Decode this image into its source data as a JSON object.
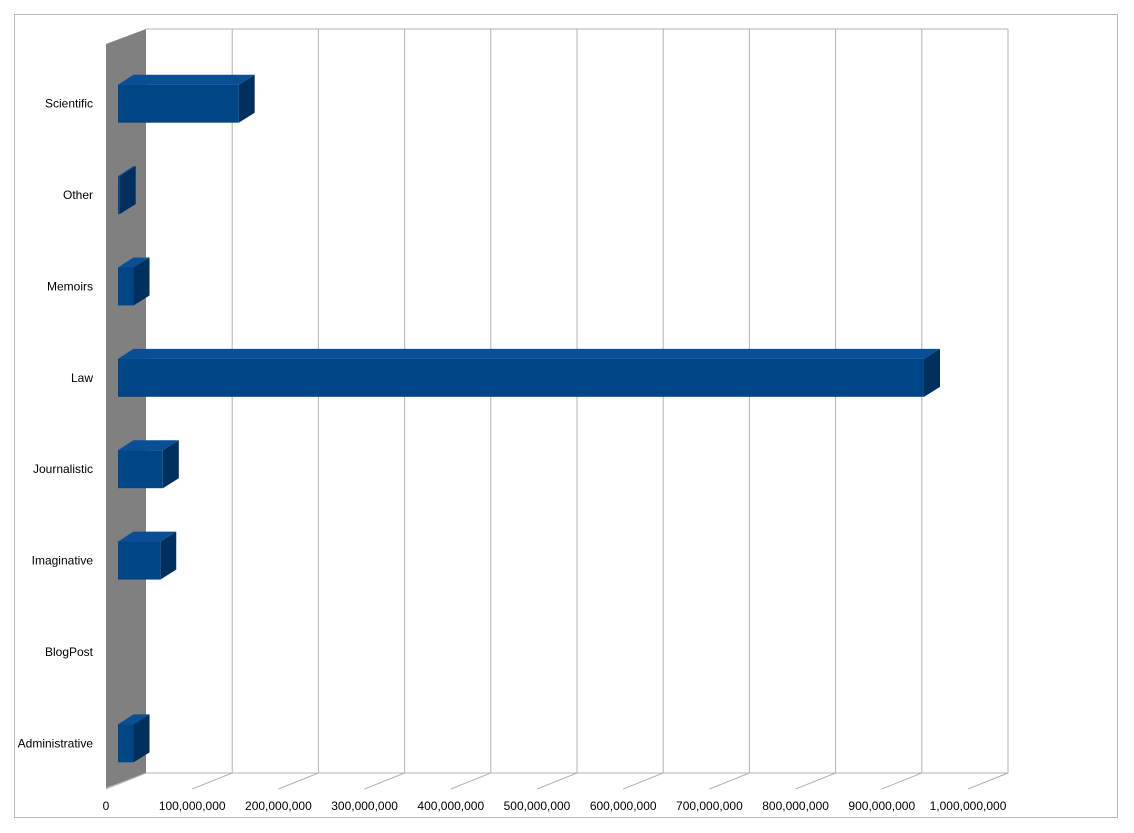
{
  "chart_data": {
    "type": "bar",
    "orientation": "horizontal",
    "three_d": true,
    "categories": [
      "Scientific",
      "Other",
      "Memoirs",
      "Law",
      "Journalistic",
      "Imaginative",
      "BlogPost",
      "Administrative"
    ],
    "values": [
      140000000,
      2000000,
      18000000,
      935000000,
      52000000,
      49000000,
      0,
      18000000
    ],
    "title": "",
    "xlabel": "",
    "ylabel": "",
    "xlim": [
      0,
      1000000000
    ],
    "x_ticks": [
      0,
      100000000,
      200000000,
      300000000,
      400000000,
      500000000,
      600000000,
      700000000,
      800000000,
      900000000,
      1000000000
    ],
    "x_tick_labels": [
      "0",
      "100,000,000",
      "200,000,000",
      "300,000,000",
      "400,000,000",
      "500,000,000",
      "600,000,000",
      "700,000,000",
      "800,000,000",
      "900,000,000",
      "1,000,000,000"
    ],
    "grid": true,
    "legend": false,
    "colors": {
      "bar_front": "#004586",
      "bar_top": "#0a4f96",
      "bar_side": "#00305e",
      "wall": "#808080",
      "grid": "#b3b3b3"
    }
  }
}
